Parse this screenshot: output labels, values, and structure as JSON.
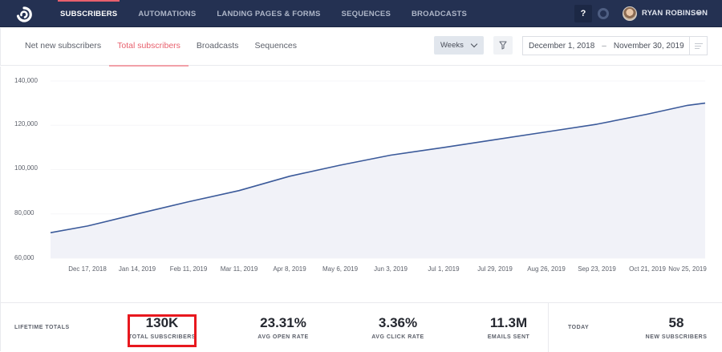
{
  "topnav": {
    "logo": "convertkit-logo-icon",
    "items": [
      {
        "label": "SUBSCRIBERS",
        "active": true
      },
      {
        "label": "AUTOMATIONS",
        "active": false
      },
      {
        "label": "LANDING PAGES & FORMS",
        "active": false
      },
      {
        "label": "SEQUENCES",
        "active": false
      },
      {
        "label": "BROADCASTS",
        "active": false
      }
    ],
    "help_label": "?",
    "user_name": "RYAN ROBINSON"
  },
  "subnav": {
    "tabs": [
      {
        "label": "Net new subscribers",
        "active": false
      },
      {
        "label": "Total subscribers",
        "active": true
      },
      {
        "label": "Broadcasts",
        "active": false
      },
      {
        "label": "Sequences",
        "active": false
      }
    ],
    "interval_select": "Weeks",
    "date_range": {
      "start": "December 1, 2018",
      "separator": "–",
      "end": "November 30, 2019"
    }
  },
  "chart_data": {
    "type": "area",
    "title": "Total subscribers",
    "xlabel": "",
    "ylabel": "",
    "ylim": [
      60000,
      140000
    ],
    "yticks": [
      "140,000",
      "120,000",
      "100,000",
      "80,000",
      "60,000"
    ],
    "xticks": [
      "Dec 17, 2018",
      "Jan 14, 2019",
      "Feb 11, 2019",
      "Mar 11, 2019",
      "Apr 8, 2019",
      "May 6, 2019",
      "Jun 3, 2019",
      "Jul 1, 2019",
      "Jul 29, 2019",
      "Aug 26, 2019",
      "Sep 23, 2019",
      "Oct 21, 2019",
      "Nov 25, 2019"
    ],
    "grid": true,
    "line_color": "#3b5a9a",
    "fill_color": "#f1f2f8",
    "series": [
      {
        "name": "Total subscribers",
        "x": [
          "Dec 1, 2018",
          "Dec 17, 2018",
          "Jan 14, 2019",
          "Feb 11, 2019",
          "Mar 11, 2019",
          "Apr 8, 2019",
          "May 6, 2019",
          "Jun 3, 2019",
          "Jul 1, 2019",
          "Jul 29, 2019",
          "Aug 26, 2019",
          "Sep 23, 2019",
          "Oct 21, 2019",
          "Nov 25, 2019",
          "Nov 30, 2019"
        ],
        "values": [
          71500,
          74500,
          80000,
          85500,
          90500,
          97000,
          102000,
          106500,
          110000,
          113500,
          117000,
          120500,
          125000,
          129000,
          130000
        ]
      }
    ]
  },
  "lifetime_totals": {
    "label": "LIFETIME TOTALS",
    "stats": [
      {
        "value": "130K",
        "label": "TOTAL SUBSCRIBERS",
        "highlighted": true
      },
      {
        "value": "23.31%",
        "label": "AVG OPEN RATE"
      },
      {
        "value": "3.36%",
        "label": "AVG CLICK RATE"
      },
      {
        "value": "11.3M",
        "label": "EMAILS SENT"
      }
    ]
  },
  "today": {
    "label": "TODAY",
    "stat": {
      "value": "58",
      "label": "NEW SUBSCRIBERS"
    }
  },
  "colors": {
    "nav_bg": "#243152",
    "accent": "#e8606d",
    "highlight_border": "#e8181e"
  }
}
